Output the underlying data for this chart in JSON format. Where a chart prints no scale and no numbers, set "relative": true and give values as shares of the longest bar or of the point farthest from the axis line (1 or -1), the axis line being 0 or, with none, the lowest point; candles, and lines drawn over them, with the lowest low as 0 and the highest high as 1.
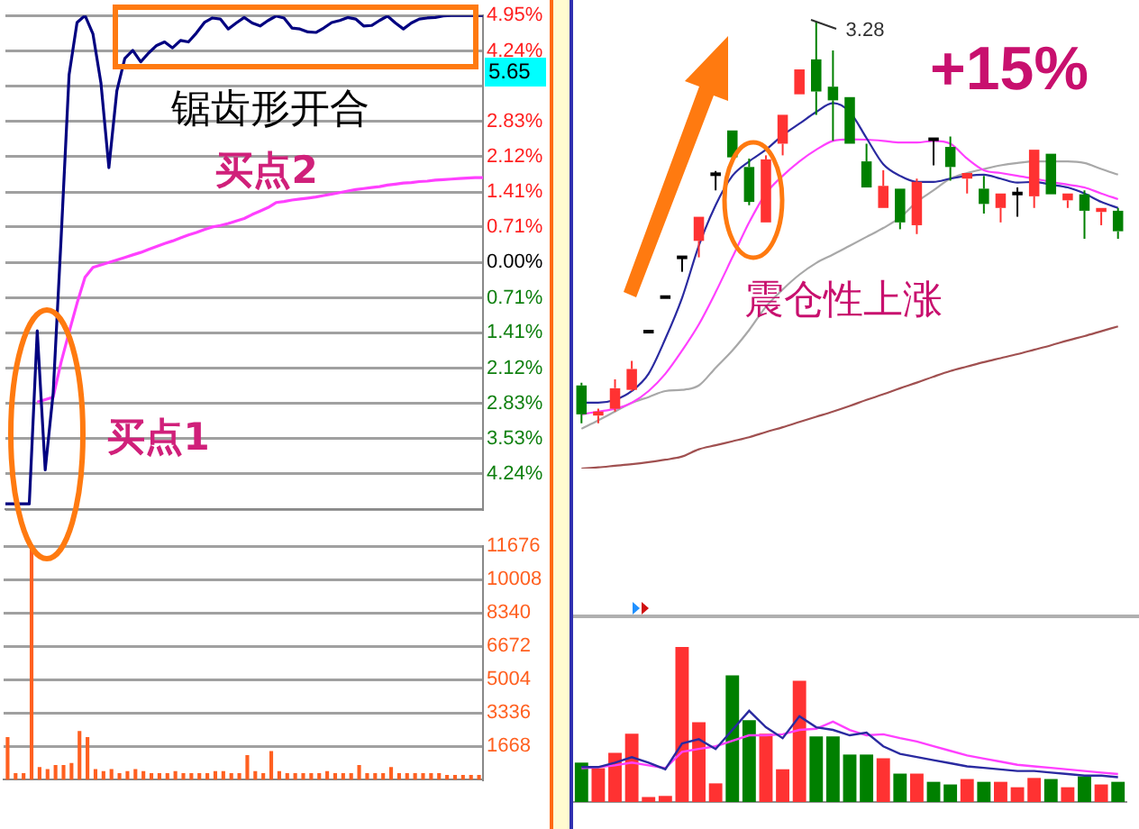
{
  "chart_data": [
    {
      "type": "line",
      "categories": [
        null,
        null,
        null,
        null,
        null,
        null,
        null,
        null,
        null,
        null,
        null,
        null,
        null,
        null,
        null,
        null,
        null,
        null,
        null,
        null,
        null,
        null,
        null,
        null,
        null,
        null,
        null,
        null,
        null,
        null,
        null,
        null,
        null,
        null,
        null,
        null,
        null,
        null,
        null,
        null,
        null,
        null,
        null,
        null,
        null,
        null,
        null,
        null,
        null,
        null,
        null,
        null,
        null,
        null,
        null,
        null,
        null,
        null,
        null,
        null,
        null
      ],
      "ylim": [
        -4.95,
        4.95
      ],
      "yticks": [
        {
          "value": 4.95,
          "label": "4.95%"
        },
        {
          "value": 4.24,
          "label": "4.24%"
        },
        {
          "value": 3.53,
          "label": null
        },
        {
          "value": 2.83,
          "label": "2.83%"
        },
        {
          "value": 2.12,
          "label": "2.12%"
        },
        {
          "value": 1.41,
          "label": "1.41%"
        },
        {
          "value": 0.71,
          "label": "0.71%"
        },
        {
          "value": 0,
          "label": "0.00%"
        },
        {
          "value": -0.71,
          "label": "0.71%"
        },
        {
          "value": -1.41,
          "label": "1.41%"
        },
        {
          "value": -2.12,
          "label": "2.12%"
        },
        {
          "value": -2.83,
          "label": "2.83%"
        },
        {
          "value": -3.53,
          "label": "3.53%"
        },
        {
          "value": -4.24,
          "label": "4.24%"
        },
        {
          "value": -4.95,
          "label": null
        }
      ],
      "grid": "y",
      "series": [
        {
          "color": "#000080",
          "values": [
            -4.84,
            -4.84,
            -4.84,
            -4.84,
            -1.37,
            -4.16,
            -2.62,
            0.49,
            3.76,
            4.81,
            4.95,
            4.58,
            3.6,
            1.9,
            3.44,
            4.09,
            4.25,
            4.02,
            4.2,
            4.35,
            4.42,
            4.3,
            4.45,
            4.42,
            4.6,
            4.81,
            4.9,
            4.88,
            4.68,
            4.8,
            4.91,
            4.8,
            4.74,
            4.85,
            4.94,
            4.9,
            4.7,
            4.68,
            4.62,
            4.61,
            4.7,
            4.81,
            4.85,
            4.91,
            4.88,
            4.74,
            4.75,
            4.85,
            4.94,
            4.8,
            4.68,
            4.8,
            4.88,
            4.9,
            4.91,
            4.94,
            4.95,
            4.95,
            4.95,
            4.95,
            4.95
          ]
        },
        {
          "color": "#ff40ff",
          "values": [
            null,
            null,
            null,
            null,
            -2.8,
            -2.75,
            -2.7,
            -2.0,
            -1.4,
            -0.82,
            -0.3,
            -0.1,
            -0.05,
            0,
            0.05,
            0.1,
            0.15,
            0.2,
            0.26,
            0.32,
            0.38,
            0.43,
            0.49,
            0.55,
            0.6,
            0.66,
            0.71,
            0.74,
            0.78,
            0.83,
            0.88,
            0.96,
            1.03,
            1.1,
            1.2,
            1.22,
            1.25,
            1.27,
            1.29,
            1.31,
            1.34,
            1.37,
            1.4,
            1.43,
            1.46,
            1.48,
            1.5,
            1.52,
            1.55,
            1.57,
            1.59,
            1.6,
            1.62,
            1.63,
            1.65,
            1.66,
            1.67,
            1.68,
            1.69,
            1.7,
            1.7
          ]
        }
      ],
      "annotations": [
        "锯齿形开合",
        "买点2",
        "买点1",
        "5.65"
      ]
    },
    {
      "type": "bar",
      "color": "#ff6020",
      "categories": [
        null,
        null,
        null,
        null,
        null,
        null,
        null,
        null,
        null,
        null,
        null,
        null,
        null,
        null,
        null,
        null,
        null,
        null,
        null,
        null,
        null,
        null,
        null,
        null,
        null,
        null,
        null,
        null,
        null,
        null,
        null,
        null,
        null,
        null,
        null,
        null,
        null,
        null,
        null,
        null,
        null,
        null,
        null,
        null,
        null,
        null,
        null,
        null,
        null,
        null,
        null,
        null,
        null,
        null,
        null,
        null,
        null,
        null,
        null,
        null
      ],
      "values": [
        2100,
        300,
        300,
        11500,
        600,
        500,
        700,
        700,
        800,
        2400,
        2100,
        500,
        400,
        500,
        300,
        400,
        500,
        400,
        300,
        300,
        300,
        400,
        300,
        300,
        300,
        300,
        400,
        400,
        300,
        300,
        1200,
        400,
        300,
        1400,
        400,
        300,
        300,
        300,
        300,
        300,
        400,
        300,
        300,
        300,
        700,
        300,
        300,
        300,
        600,
        300,
        300,
        300,
        300,
        300,
        300,
        200,
        200,
        200,
        200,
        200
      ],
      "ylim": [
        0,
        11676
      ],
      "yticks": [
        1668,
        3336,
        5004,
        6672,
        8340,
        10008,
        11676
      ],
      "grid": "y"
    },
    {
      "type": "candlestick",
      "relative": true,
      "categories": [
        null,
        null,
        null,
        null,
        null,
        null,
        null,
        null,
        null,
        null,
        null,
        null,
        null,
        null,
        null,
        null,
        null,
        null,
        null,
        null,
        null,
        null,
        null,
        null,
        null,
        null,
        null,
        null,
        null,
        null,
        null,
        null,
        null
      ],
      "ohlc": [
        [
          0.094,
          0.101,
          0,
          0.022
        ],
        [
          0.019,
          0.036,
          0,
          0.029
        ],
        [
          0.036,
          0.109,
          0.029,
          0.087
        ],
        [
          0.083,
          0.155,
          0.08,
          0.135
        ],
        [
          0.228,
          0.228,
          0.228,
          0.228
        ],
        [
          0.314,
          0.314,
          0.314,
          0.314
        ],
        [
          0.413,
          0.413,
          0.377,
          0.413
        ],
        [
          0.454,
          0.514,
          0.413,
          0.514
        ],
        [
          0.62,
          0.628,
          0.58,
          0.62
        ],
        [
          0.729,
          0.729,
          0.662,
          0.662
        ],
        [
          0.638,
          0.659,
          0.543,
          0.551
        ],
        [
          0.5,
          0.667,
          0.5,
          0.657
        ],
        [
          0.696,
          0.768,
          0.667,
          0.768
        ],
        [
          0.819,
          0.881,
          0.819,
          0.881
        ],
        [
          0.906,
          1,
          0.768,
          0.826
        ],
        [
          0.838,
          0.928,
          0.703,
          0.804
        ],
        [
          0.812,
          0.812,
          0.696,
          0.696
        ],
        [
          0.652,
          0.696,
          0.587,
          0.587
        ],
        [
          0.536,
          0.63,
          0.536,
          0.591
        ],
        [
          0.584,
          0.584,
          0.483,
          0.5
        ],
        [
          0.493,
          0.609,
          0.471,
          0.601
        ],
        [
          0.707,
          0.71,
          0.642,
          0.707
        ],
        [
          0.688,
          0.714,
          0.604,
          0.638
        ],
        [
          0.609,
          0.623,
          0.572,
          0.623
        ],
        [
          0.584,
          0.616,
          0.522,
          0.546
        ],
        [
          0.536,
          0.572,
          0.5,
          0.572
        ],
        [
          0.572,
          0.587,
          0.514,
          0.572
        ],
        [
          0.565,
          0.681,
          0.536,
          0.681
        ],
        [
          0.671,
          0.671,
          0.57,
          0.57
        ],
        [
          0.555,
          0.572,
          0.536,
          0.572
        ],
        [
          0.57,
          0.58,
          0.459,
          0.529
        ],
        [
          0.526,
          0.536,
          0.493,
          0.536
        ],
        [
          0.529,
          0.536,
          0.459,
          0.478
        ]
      ],
      "colors": [
        "#008000",
        "#ff3232",
        "#ff3232",
        "#ff3232",
        "#000000",
        "#000000",
        "#000000",
        "#ff3232",
        "#000000",
        "#008000",
        "#008000",
        "#ff3232",
        "#ff3232",
        "#ff3232",
        "#008000",
        "#008000",
        "#008000",
        "#008000",
        "#ff3232",
        "#008000",
        "#ff3232",
        "#000000",
        "#008000",
        "#ff3232",
        "#008000",
        "#ff3232",
        "#000000",
        "#ff3232",
        "#008000",
        "#ff3232",
        "#008000",
        "#ff3232",
        "#008000"
      ],
      "series": [
        {
          "type": "line",
          "color": "#2a2aa0",
          "values": [
            0.051,
            0.051,
            0.058,
            0.08,
            0.123,
            0.21,
            0.312,
            0.442,
            0.543,
            0.616,
            0.652,
            0.681,
            0.717,
            0.746,
            0.775,
            0.797,
            0.775,
            0.71,
            0.645,
            0.616,
            0.601,
            0.601,
            0.609,
            0.616,
            0.619,
            0.609,
            0.599,
            0.601,
            0.594,
            0.587,
            0.572,
            0.551,
            0.536
          ]
        },
        {
          "type": "line",
          "color": "#ff40ff",
          "values": [
            0.022,
            0.029,
            0.036,
            0.051,
            0.08,
            0.123,
            0.181,
            0.246,
            0.326,
            0.413,
            0.5,
            0.572,
            0.616,
            0.652,
            0.681,
            0.703,
            0.707,
            0.706,
            0.703,
            0.699,
            0.699,
            0.703,
            0.696,
            0.659,
            0.63,
            0.623,
            0.616,
            0.609,
            0.601,
            0.594,
            0.587,
            0.572,
            0.558
          ]
        },
        {
          "type": "line",
          "color": "#a8a8a8",
          "values": [
            -0.014,
            0.007,
            0.029,
            0.051,
            0.065,
            0.08,
            0.083,
            0.094,
            0.138,
            0.181,
            0.232,
            0.29,
            0.333,
            0.37,
            0.399,
            0.42,
            0.442,
            0.464,
            0.486,
            0.512,
            0.551,
            0.58,
            0.609,
            0.623,
            0.633,
            0.642,
            0.648,
            0.652,
            0.652,
            0.652,
            0.648,
            0.633,
            0.619
          ]
        },
        {
          "type": "line",
          "color": "#a05050",
          "values": [
            -0.113,
            -0.11,
            -0.106,
            -0.102,
            -0.097,
            -0.091,
            -0.083,
            -0.065,
            -0.055,
            -0.045,
            -0.035,
            -0.022,
            -0.01,
            0.003,
            0.016,
            0.029,
            0.043,
            0.058,
            0.072,
            0.087,
            0.101,
            0.116,
            0.13,
            0.141,
            0.152,
            0.162,
            0.172,
            0.183,
            0.194,
            0.206,
            0.217,
            0.229,
            0.241
          ]
        }
      ],
      "annotations": [
        "3.28",
        "+15%",
        "震仓性上涨"
      ]
    },
    {
      "type": "bar",
      "relative": true,
      "categories": [
        null,
        null,
        null,
        null,
        null,
        null,
        null,
        null,
        null,
        null,
        null,
        null,
        null,
        null,
        null,
        null,
        null,
        null,
        null,
        null,
        null,
        null,
        null,
        null,
        null,
        null,
        null,
        null,
        null,
        null,
        null,
        null,
        null
      ],
      "colors": [
        "#008000",
        "#ff3232",
        "#ff3232",
        "#ff3232",
        "#ff3232",
        "#ff3232",
        "#ff3232",
        "#ff3232",
        "#ff3232",
        "#008000",
        "#008000",
        "#ff3232",
        "#ff3232",
        "#ff3232",
        "#008000",
        "#008000",
        "#008000",
        "#008000",
        "#ff3232",
        "#008000",
        "#ff3232",
        "#008000",
        "#008000",
        "#ff3232",
        "#008000",
        "#ff3232",
        "#ff3232",
        "#ff3232",
        "#008000",
        "#ff3232",
        "#008000",
        "#ff3232",
        "#008000"
      ],
      "values": [
        0.254,
        0.218,
        0.317,
        0.44,
        0.032,
        0.039,
        1,
        0.514,
        0.12,
        0.817,
        0.528,
        0.44,
        0.211,
        0.782,
        0.423,
        0.423,
        0.306,
        0.306,
        0.282,
        0.183,
        0.183,
        0.13,
        0.113,
        0.148,
        0.13,
        0.13,
        0.095,
        0.155,
        0.148,
        0.095,
        0.165,
        0.113,
        0.13
      ],
      "series": [
        {
          "type": "line",
          "color": "#2a2aa0",
          "values": [
            0.225,
            0.225,
            0.254,
            0.289,
            0.254,
            0.211,
            0.377,
            0.405,
            0.342,
            0.465,
            0.588,
            0.482,
            0.412,
            0.553,
            0.482,
            0.465,
            0.43,
            0.447,
            0.359,
            0.31,
            0.29,
            0.27,
            0.25,
            0.23,
            0.22,
            0.21,
            0.2,
            0.2,
            0.19,
            0.18,
            0.17,
            0.17,
            0.16
          ]
        },
        {
          "type": "line",
          "color": "#ff40ff",
          "values": [
            0.218,
            0.225,
            0.236,
            0.254,
            0.236,
            0.218,
            0.324,
            0.342,
            0.359,
            0.394,
            0.43,
            0.43,
            0.437,
            0.465,
            0.472,
            0.518,
            0.465,
            0.43,
            0.437,
            0.412,
            0.39,
            0.36,
            0.33,
            0.3,
            0.28,
            0.26,
            0.24,
            0.23,
            0.22,
            0.21,
            0.2,
            0.19,
            0.18
          ]
        }
      ]
    }
  ]
}
